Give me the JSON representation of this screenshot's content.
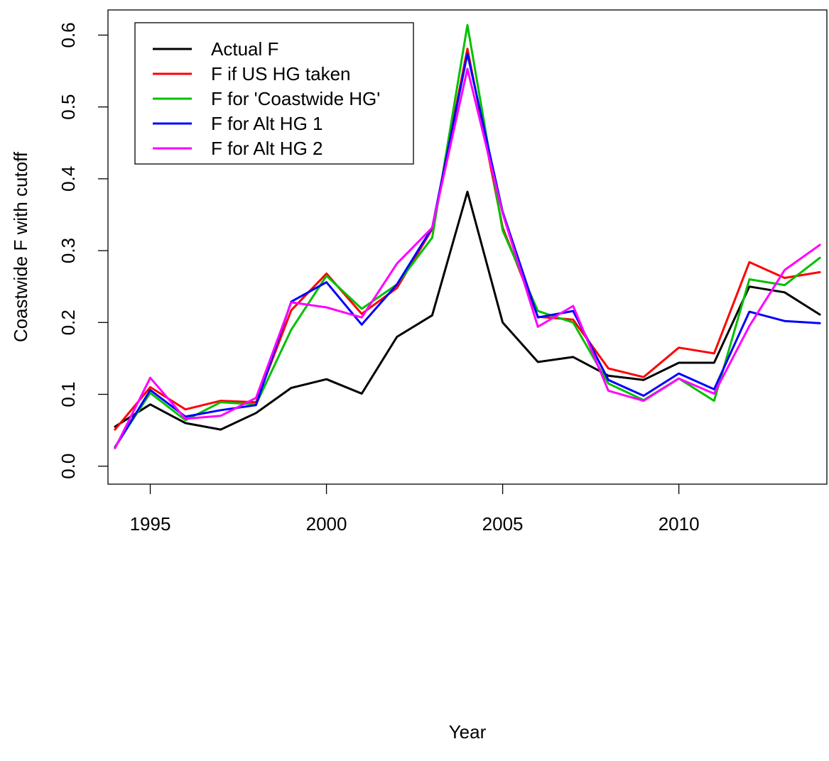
{
  "chart_data": {
    "type": "line",
    "xlabel": "Year",
    "ylabel": "Coastwide F with cutoff",
    "xlim": [
      1993.8,
      2014.2
    ],
    "ylim": [
      -0.025,
      0.635
    ],
    "x_ticks": [
      1995,
      2000,
      2005,
      2010
    ],
    "y_ticks": [
      0.0,
      0.1,
      0.2,
      0.3,
      0.4,
      0.5,
      0.6
    ],
    "y_tick_labels": [
      "0.0",
      "0.1",
      "0.2",
      "0.3",
      "0.4",
      "0.5",
      "0.6"
    ],
    "x": [
      1994,
      1995,
      1996,
      1997,
      1998,
      1999,
      2000,
      2001,
      2002,
      2003,
      2004,
      2005,
      2006,
      2007,
      2008,
      2009,
      2010,
      2011,
      2012,
      2013,
      2014
    ],
    "legend_position": "top-left",
    "grid": false,
    "series": [
      {
        "name": "Actual F",
        "color": "#000000",
        "values": [
          0.055,
          0.086,
          0.06,
          0.051,
          0.074,
          0.109,
          0.121,
          0.101,
          0.18,
          0.21,
          0.382,
          0.2,
          0.145,
          0.152,
          0.126,
          0.12,
          0.144,
          0.144,
          0.25,
          0.242,
          0.211
        ]
      },
      {
        "name": "F if US HG taken",
        "color": "#ff0000",
        "values": [
          0.051,
          0.11,
          0.079,
          0.091,
          0.089,
          0.217,
          0.268,
          0.212,
          0.248,
          0.33,
          0.581,
          0.332,
          0.208,
          0.204,
          0.136,
          0.124,
          0.165,
          0.157,
          0.284,
          0.262,
          0.27
        ]
      },
      {
        "name": "F for 'Coastwide HG'",
        "color": "#00c000",
        "values": [
          0.027,
          0.102,
          0.064,
          0.089,
          0.086,
          0.19,
          0.265,
          0.219,
          0.253,
          0.318,
          0.614,
          0.328,
          0.216,
          0.2,
          0.115,
          0.092,
          0.122,
          0.091,
          0.26,
          0.252,
          0.29
        ]
      },
      {
        "name": "F for Alt HG 1",
        "color": "#0000ff",
        "values": [
          0.026,
          0.106,
          0.069,
          0.078,
          0.085,
          0.229,
          0.256,
          0.197,
          0.253,
          0.332,
          0.574,
          0.354,
          0.207,
          0.216,
          0.12,
          0.098,
          0.129,
          0.107,
          0.215,
          0.202,
          0.199
        ]
      },
      {
        "name": "F for Alt HG 2",
        "color": "#ff00ff",
        "values": [
          0.025,
          0.123,
          0.066,
          0.07,
          0.095,
          0.228,
          0.221,
          0.207,
          0.282,
          0.332,
          0.553,
          0.352,
          0.194,
          0.223,
          0.105,
          0.091,
          0.122,
          0.101,
          0.195,
          0.273,
          0.308
        ]
      }
    ]
  }
}
